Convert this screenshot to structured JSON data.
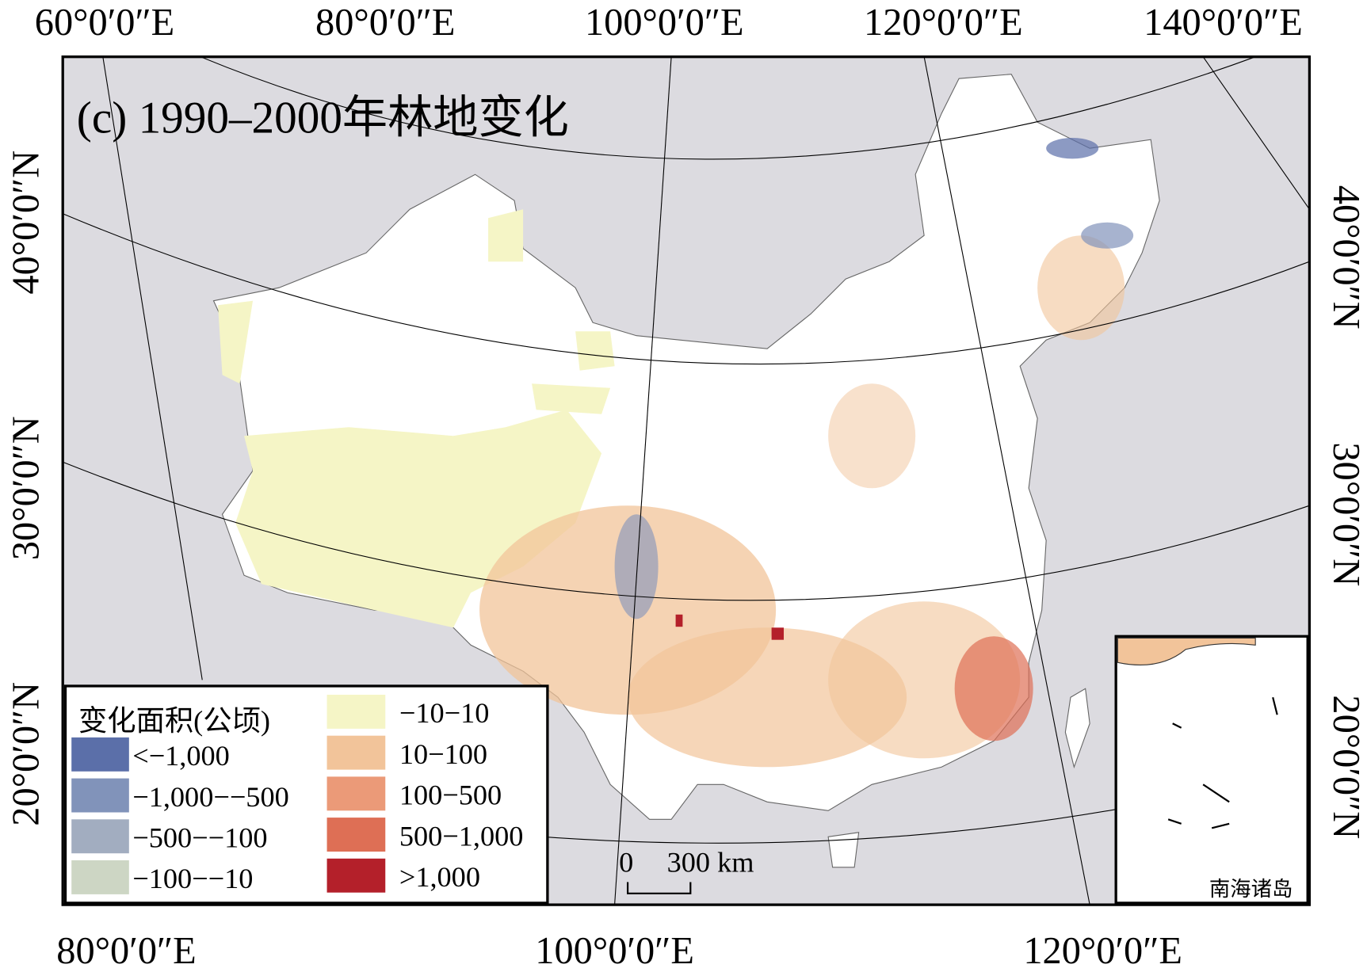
{
  "title": "(c) 1990–2000年林地变化",
  "lon_labels_top": [
    "60°0′0″E",
    "80°0′0″E",
    "100°0′0″E",
    "120°0′0″E",
    "140°0′0″E"
  ],
  "lon_labels_bottom": [
    "80°0′0″E",
    "100°0′0″E",
    "120°0′0″E"
  ],
  "lat_labels_left": [
    "40°0′0″N",
    "30°0′0″N",
    "20°0′0″N"
  ],
  "lat_labels_right": [
    "40°0′0″N",
    "30°0′0″N",
    "20°0′0″N"
  ],
  "legend": {
    "title": "变化面积(公顷)",
    "items": [
      {
        "label": "<−1,000",
        "color": "#5b6fa9"
      },
      {
        "label": "−1,000−−500",
        "color": "#8193ba"
      },
      {
        "label": "−500−−100",
        "color": "#a2adc0"
      },
      {
        "label": "−100−−10",
        "color": "#cdd6c4"
      },
      {
        "label": "−10−10",
        "color": "#f5f5c6"
      },
      {
        "label": "10−100",
        "color": "#f2c49a"
      },
      {
        "label": "100−500",
        "color": "#eb9a78"
      },
      {
        "label": "500−1,000",
        "color": "#de6f55"
      },
      {
        "label": ">1,000",
        "color": "#b4202a"
      }
    ]
  },
  "scale_bar": {
    "zero": "0",
    "label": "300 km"
  },
  "inset": {
    "label": "南海诸岛"
  }
}
